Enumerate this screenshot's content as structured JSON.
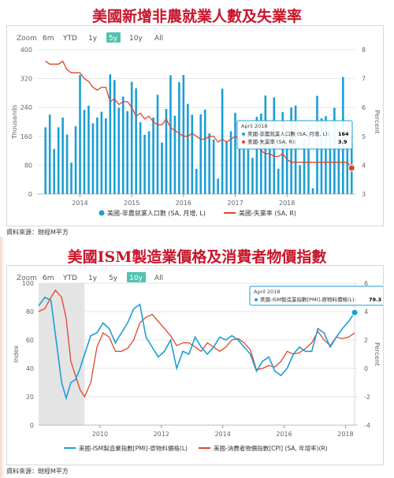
{
  "panel1": {
    "title": "美國新增非農就業人數及失業率",
    "source": "資料來源：財經M平方"
  },
  "panel2": {
    "title": "美國ISM製造業價格及消費者物價指數",
    "source": "資料來源：財經M平方"
  },
  "chart_data": [
    {
      "type": "bar+line",
      "zoom": {
        "label": "Zoom",
        "options": [
          "6m",
          "YTD",
          "1y",
          "5y",
          "10y",
          "All"
        ],
        "selected": "5y"
      },
      "x_ticks": [
        "2014",
        "2015",
        "2016",
        "2017",
        "2018"
      ],
      "y_left": {
        "label": "Thousands",
        "ticks": [
          "0",
          "80",
          "160",
          "240",
          "320",
          "400"
        ],
        "range": [
          0,
          400
        ]
      },
      "y_right": {
        "label": "Percent",
        "ticks": [
          "3",
          "4",
          "5",
          "6",
          "7",
          "8"
        ],
        "range": [
          3,
          8
        ]
      },
      "tooltip": {
        "date": "April 2018",
        "rows": [
          {
            "label": "美國-非農就業人口數 (SA, 月增, L):",
            "value": "164",
            "color": "#1b9fd4"
          },
          {
            "label": "美國-失業率 (SA, R):",
            "value": "3.9",
            "color": "#e0452a"
          }
        ]
      },
      "legend": [
        "美國-非農就業人口數 (SA, 月增, L)",
        "美國-失業率 (SA, R)"
      ],
      "colors": {
        "bars": "#1b9fd4",
        "line": "#e0452a"
      },
      "series": [
        {
          "name": "美國-非農就業人口數 (SA, 月增, L)",
          "kind": "bar",
          "axis": "left",
          "values": [
            185,
            220,
            125,
            185,
            212,
            165,
            87,
            188,
            330,
            233,
            245,
            196,
            212,
            228,
            210,
            332,
            316,
            239,
            270,
            230,
            311,
            293,
            199,
            164,
            174,
            212,
            275,
            143,
            236,
            329,
            217,
            310,
            330,
            250,
            220,
            70,
            221,
            234,
            168,
            151,
            43,
            292,
            144,
            174,
            225,
            162,
            148,
            123,
            100,
            214,
            223,
            273,
            159,
            268,
            70,
            227,
            134,
            240,
            245,
            80,
            155,
            190,
            16,
            272,
            210,
            216,
            175,
            239,
            160,
            324,
            135,
            164
          ]
        },
        {
          "name": "美國-失業率 (SA, R)",
          "kind": "line",
          "axis": "right",
          "values": [
            7.6,
            7.5,
            7.5,
            7.5,
            7.6,
            7.3,
            7.2,
            7.2,
            7.2,
            7.0,
            6.9,
            6.7,
            6.6,
            6.7,
            6.7,
            6.2,
            6.3,
            6.1,
            6.2,
            6.2,
            6.0,
            5.7,
            5.8,
            5.6,
            5.7,
            5.5,
            5.4,
            5.4,
            5.6,
            5.3,
            5.2,
            5.1,
            5.0,
            5.0,
            5.1,
            5.0,
            4.9,
            4.9,
            5.0,
            5.0,
            4.8,
            4.9,
            4.8,
            4.9,
            5.0,
            4.9,
            4.7,
            4.7,
            4.8,
            4.7,
            4.5,
            4.4,
            4.4,
            4.3,
            4.3,
            4.4,
            4.2,
            4.1,
            4.1,
            4.1,
            4.1,
            4.1,
            4.1,
            4.1,
            4.1,
            4.1,
            4.1,
            4.1,
            4.1,
            4.1,
            4.1,
            3.9
          ]
        }
      ]
    },
    {
      "type": "line",
      "zoom": {
        "label": "Zoom",
        "options": [
          "6m",
          "YTD",
          "1y",
          "5y",
          "10y",
          "All"
        ],
        "selected": "10y"
      },
      "x_ticks": [
        "2010",
        "2012",
        "2014",
        "2016",
        "2018"
      ],
      "y_left": {
        "label": "Index",
        "ticks": [
          "0",
          "20",
          "40",
          "60",
          "80",
          "100"
        ],
        "range": [
          0,
          100
        ]
      },
      "y_right": {
        "label": "Percent",
        "ticks": [
          "-4",
          "-2",
          "0",
          "2",
          "4",
          "6"
        ],
        "range": [
          -4,
          6
        ]
      },
      "recession_shade": {
        "from": 2008.0,
        "to": 2009.5
      },
      "tooltip": {
        "date": "April 2018",
        "rows": [
          {
            "label": "美國-ISM製造業指數[PMI]-原物料價格(L):",
            "value": "79.3",
            "color": "#1b9fd4"
          }
        ]
      },
      "legend": [
        "美國-ISM製造業指數[PMI]-原物料價格(L)",
        "美國-消費者物價指數[CPI] (SA, 年增率)(R)"
      ],
      "colors": {
        "ism": "#1b9fd4",
        "cpi": "#e0452a"
      },
      "series": [
        {
          "name": "美國-ISM製造業指數[PMI]-原物料價格(L)",
          "axis": "left",
          "x": [
            2008.0,
            2008.2,
            2008.4,
            2008.6,
            2008.75,
            2008.9,
            2009.05,
            2009.2,
            2009.35,
            2009.5,
            2009.7,
            2009.9,
            2010.1,
            2010.3,
            2010.5,
            2010.7,
            2010.9,
            2011.1,
            2011.3,
            2011.5,
            2011.7,
            2011.9,
            2012.1,
            2012.3,
            2012.5,
            2012.7,
            2012.9,
            2013.1,
            2013.3,
            2013.5,
            2013.7,
            2013.9,
            2014.1,
            2014.3,
            2014.5,
            2014.7,
            2014.9,
            2015.1,
            2015.3,
            2015.5,
            2015.7,
            2015.9,
            2016.1,
            2016.3,
            2016.5,
            2016.7,
            2016.9,
            2017.1,
            2017.3,
            2017.5,
            2017.7,
            2017.9,
            2018.1,
            2018.3
          ],
          "y": [
            84,
            90,
            88,
            55,
            30,
            19,
            30,
            32,
            40,
            50,
            63,
            65,
            72,
            68,
            58,
            65,
            72,
            82,
            85,
            62,
            55,
            48,
            52,
            60,
            40,
            52,
            50,
            62,
            55,
            50,
            55,
            62,
            60,
            63,
            60,
            55,
            50,
            38,
            45,
            48,
            38,
            35,
            40,
            50,
            55,
            52,
            52,
            68,
            65,
            55,
            62,
            68,
            73,
            79.3
          ]
        },
        {
          "name": "美國-消費者物價指數[CPI] (SA, 年增率)(R)",
          "axis": "right",
          "x": [
            2008.0,
            2008.2,
            2008.4,
            2008.55,
            2008.75,
            2008.9,
            2009.05,
            2009.2,
            2009.35,
            2009.5,
            2009.7,
            2009.9,
            2010.1,
            2010.3,
            2010.5,
            2010.7,
            2010.9,
            2011.1,
            2011.3,
            2011.5,
            2011.7,
            2011.9,
            2012.1,
            2012.3,
            2012.5,
            2012.7,
            2012.9,
            2013.1,
            2013.3,
            2013.5,
            2013.7,
            2013.9,
            2014.1,
            2014.3,
            2014.5,
            2014.7,
            2014.9,
            2015.1,
            2015.3,
            2015.5,
            2015.7,
            2015.9,
            2016.1,
            2016.3,
            2016.5,
            2016.7,
            2016.9,
            2017.1,
            2017.3,
            2017.5,
            2017.7,
            2017.9,
            2018.1,
            2018.3
          ],
          "y": [
            4.0,
            4.2,
            5.0,
            5.5,
            5.0,
            3.5,
            0.5,
            -0.5,
            -1.5,
            -2.0,
            -1.0,
            1.5,
            2.5,
            2.2,
            1.2,
            1.2,
            1.4,
            2.0,
            3.2,
            3.6,
            3.8,
            3.3,
            2.8,
            2.3,
            1.6,
            1.8,
            1.8,
            1.5,
            1.2,
            1.8,
            1.5,
            1.2,
            1.5,
            2.0,
            2.1,
            1.8,
            1.3,
            -0.1,
            0.0,
            0.2,
            0.1,
            0.5,
            1.2,
            1.0,
            1.1,
            1.4,
            1.8,
            2.6,
            2.0,
            1.6,
            2.2,
            2.1,
            2.2,
            2.5
          ]
        }
      ]
    }
  ]
}
